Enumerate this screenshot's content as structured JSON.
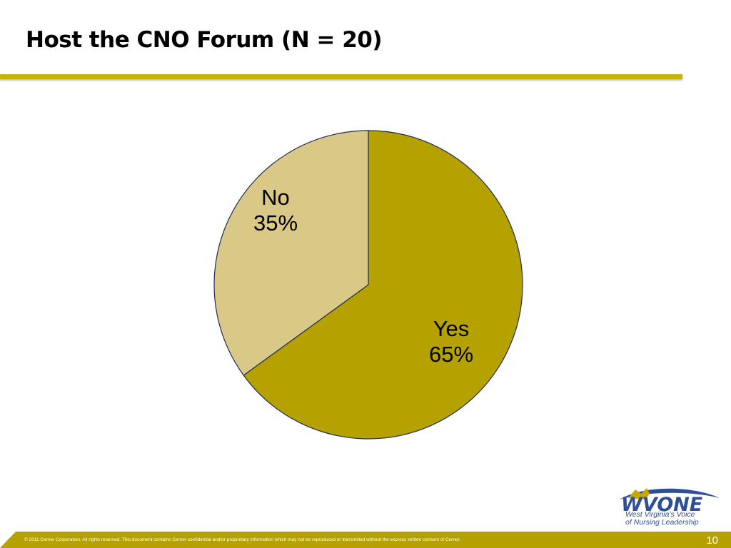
{
  "slide": {
    "title": "Host the CNO Forum (N = 20)",
    "footer_text": "© 2011 Cerner Corporation. All rights reserved. This document contains Cerner confidential and/or proprietary information which may not be reproduced or transmitted without the express written consent of Cerner.",
    "page_number": "10"
  },
  "logo": {
    "word": "WVONE",
    "line1": "West Virginia's Voice",
    "line2": "of Nursing Leadership"
  },
  "chart_data": {
    "type": "pie",
    "title": "Host the CNO Forum (N = 20)",
    "slices": [
      {
        "label": "Yes",
        "value": 65,
        "value_label": "65%",
        "color": "#b5a200"
      },
      {
        "label": "No",
        "value": 35,
        "value_label": "35%",
        "color": "#d9c886"
      }
    ],
    "start": "12 o'clock",
    "direction": "clockwise",
    "legend": "none",
    "edge_color": "#1f2d5c"
  }
}
